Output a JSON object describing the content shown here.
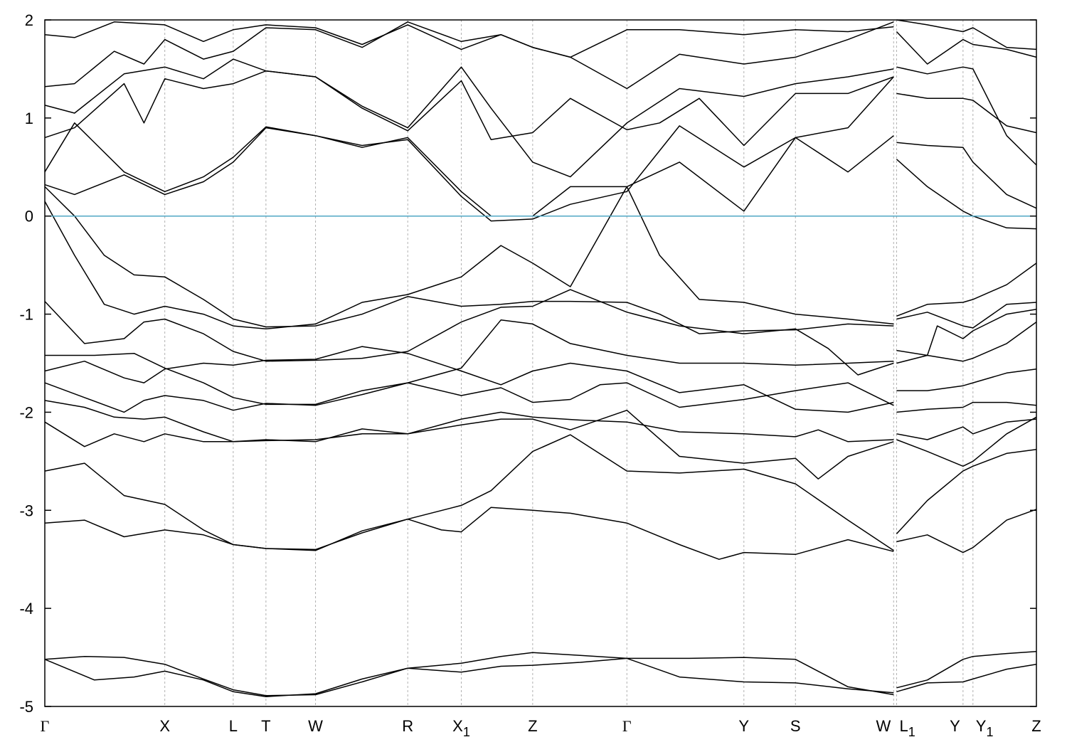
{
  "chart_data": {
    "type": "line",
    "ylim": [
      -5,
      2
    ],
    "xlim": [
      0,
      10
    ],
    "yticks": [
      -5,
      -4,
      -3,
      -2,
      -1,
      0,
      1,
      2
    ],
    "ytick_labels": [
      "-5",
      "-4",
      "-3",
      "-2",
      "-1",
      "0",
      "1",
      "2"
    ],
    "kpoints": [
      {
        "label": "Γ",
        "x": 0.0,
        "greek": true
      },
      {
        "label": "X",
        "x": 1.21
      },
      {
        "label": "L",
        "x": 1.9
      },
      {
        "label": "T",
        "x": 2.23
      },
      {
        "label": "W",
        "x": 2.73
      },
      {
        "label": "R",
        "x": 3.66
      },
      {
        "label": "X",
        "sub": "1",
        "x": 4.2
      },
      {
        "label": "Z",
        "x": 4.92
      },
      {
        "label": "Γ",
        "x": 5.87,
        "greek": true
      },
      {
        "label": "Y",
        "x": 7.05
      },
      {
        "label": "S",
        "x": 7.57
      },
      {
        "label": "W",
        "x": 8.56
      },
      {
        "label": "L",
        "sub": "1",
        "x": 8.59
      },
      {
        "label": "Y",
        "x": 9.26
      },
      {
        "label": "Y",
        "sub": "1",
        "x": 9.36
      },
      {
        "label": "Z",
        "x": 10.0
      }
    ],
    "fermi_level": 0,
    "fermi_color": "#4fa7c4",
    "line_color": "#000000",
    "series": [
      {
        "x": [
          0,
          0.4,
          0.8,
          1.21,
          1.6,
          1.9,
          2.23,
          2.73,
          3.2,
          3.66,
          4.2,
          4.6,
          4.92,
          5.4,
          5.87,
          6.5,
          7.05,
          7.57,
          8.1,
          8.56
        ],
        "y": [
          -4.52,
          -4.49,
          -4.5,
          -4.57,
          -4.72,
          -4.83,
          -4.89,
          -4.88,
          -4.75,
          -4.61,
          -4.56,
          -4.49,
          -4.45,
          -4.48,
          -4.51,
          -4.51,
          -4.5,
          -4.52,
          -4.8,
          -4.88
        ]
      },
      {
        "x": [
          0,
          0.5,
          0.9,
          1.21,
          1.6,
          1.9,
          2.23,
          2.73,
          3.2,
          3.66,
          4.2,
          4.6,
          4.92,
          5.4,
          5.87,
          6.4,
          7.05,
          7.57,
          8.1,
          8.56
        ],
        "y": [
          -4.52,
          -4.73,
          -4.7,
          -4.64,
          -4.73,
          -4.85,
          -4.9,
          -4.87,
          -4.72,
          -4.61,
          -4.65,
          -4.59,
          -4.58,
          -4.55,
          -4.51,
          -4.7,
          -4.75,
          -4.76,
          -4.82,
          -4.86
        ]
      },
      {
        "x": [
          8.59,
          8.9,
          9.26,
          9.36,
          9.7,
          10.0
        ],
        "y": [
          -4.81,
          -4.73,
          -4.52,
          -4.49,
          -4.46,
          -4.44
        ]
      },
      {
        "x": [
          8.59,
          8.9,
          9.26,
          9.36,
          9.7,
          10.0
        ],
        "y": [
          -4.85,
          -4.76,
          -4.75,
          -4.72,
          -4.62,
          -4.57
        ]
      },
      {
        "x": [
          0,
          0.4,
          0.8,
          1.21,
          1.6,
          1.9,
          2.23,
          2.73,
          3.2,
          3.66,
          4.0,
          4.2,
          4.5,
          4.92,
          5.3,
          5.87,
          6.4,
          6.8,
          7.05,
          7.57,
          8.1,
          8.56
        ],
        "y": [
          -3.13,
          -3.1,
          -3.27,
          -3.2,
          -3.25,
          -3.35,
          -3.39,
          -3.41,
          -3.21,
          -3.09,
          -3.2,
          -3.22,
          -2.97,
          -3.0,
          -3.03,
          -3.13,
          -3.35,
          -3.5,
          -3.43,
          -3.45,
          -3.3,
          -3.42
        ]
      },
      {
        "x": [
          0,
          0.4,
          0.8,
          1.21,
          1.6,
          1.9,
          2.23,
          2.73,
          3.2,
          3.66,
          4.2,
          4.5,
          4.92,
          5.3,
          5.87,
          6.4,
          7.05,
          7.57,
          8.1,
          8.56
        ],
        "y": [
          -2.6,
          -2.52,
          -2.85,
          -2.94,
          -3.2,
          -3.35,
          -3.39,
          -3.4,
          -3.23,
          -3.09,
          -2.95,
          -2.8,
          -2.4,
          -2.23,
          -2.6,
          -2.62,
          -2.58,
          -2.73,
          -3.1,
          -3.41
        ]
      },
      {
        "x": [
          8.59,
          8.9,
          9.26,
          9.36,
          9.7,
          10.0
        ],
        "y": [
          -3.32,
          -3.25,
          -3.43,
          -3.38,
          -3.1,
          -2.99
        ]
      },
      {
        "x": [
          8.59,
          8.9,
          9.26,
          9.36,
          9.7,
          10.0
        ],
        "y": [
          -3.24,
          -2.9,
          -2.6,
          -2.55,
          -2.42,
          -2.38
        ]
      },
      {
        "x": [
          0,
          0.4,
          0.7,
          1.0,
          1.21,
          1.6,
          1.9,
          2.23,
          2.73,
          3.2,
          3.66,
          4.2,
          4.6,
          4.92,
          5.4,
          5.87,
          6.4,
          7.05,
          7.57,
          7.8,
          8.1,
          8.56
        ],
        "y": [
          -2.1,
          -2.35,
          -2.22,
          -2.3,
          -2.22,
          -2.3,
          -2.3,
          -2.28,
          -2.3,
          -2.17,
          -2.22,
          -2.07,
          -2.0,
          -2.05,
          -2.08,
          -2.1,
          -2.2,
          -2.22,
          -2.25,
          -2.18,
          -2.3,
          -2.28
        ]
      },
      {
        "x": [
          0,
          0.4,
          0.7,
          1.0,
          1.21,
          1.6,
          1.9,
          2.23,
          2.73,
          3.2,
          3.66,
          4.2,
          4.6,
          4.92,
          5.3,
          5.87,
          6.4,
          7.05,
          7.57,
          7.8,
          8.1,
          8.56
        ],
        "y": [
          -1.88,
          -1.95,
          -2.05,
          -2.07,
          -2.05,
          -2.2,
          -2.3,
          -2.29,
          -2.28,
          -2.22,
          -2.22,
          -2.13,
          -2.07,
          -2.07,
          -2.18,
          -1.98,
          -2.45,
          -2.52,
          -2.47,
          -2.68,
          -2.45,
          -2.3
        ]
      },
      {
        "x": [
          8.59,
          8.9,
          9.26,
          9.36,
          9.7,
          10.0
        ],
        "y": [
          -2.22,
          -2.28,
          -2.15,
          -2.22,
          -2.1,
          -2.07
        ]
      },
      {
        "x": [
          8.59,
          8.9,
          9.26,
          9.36,
          9.7,
          10.0
        ],
        "y": [
          -2.28,
          -2.4,
          -2.55,
          -2.5,
          -2.22,
          -2.05
        ]
      },
      {
        "x": [
          0,
          0.4,
          0.8,
          1.0,
          1.21,
          1.6,
          1.9,
          2.23,
          2.73,
          3.2,
          3.66,
          4.2,
          4.6,
          4.92,
          5.3,
          5.6,
          5.87,
          6.4,
          7.05,
          7.57,
          8.1,
          8.56
        ],
        "y": [
          -1.7,
          -1.85,
          -2.0,
          -1.88,
          -1.83,
          -1.88,
          -1.98,
          -1.91,
          -1.93,
          -1.82,
          -1.7,
          -1.83,
          -1.75,
          -1.9,
          -1.87,
          -1.72,
          -1.7,
          -1.95,
          -1.87,
          -1.78,
          -1.7,
          -1.93
        ]
      },
      {
        "x": [
          0,
          0.4,
          0.8,
          1.0,
          1.21,
          1.6,
          1.9,
          2.23,
          2.73,
          3.2,
          3.66,
          4.2,
          4.6,
          4.92,
          5.3,
          5.87,
          6.4,
          7.05,
          7.57,
          8.1,
          8.56
        ],
        "y": [
          -1.58,
          -1.48,
          -1.65,
          -1.7,
          -1.56,
          -1.5,
          -1.52,
          -1.47,
          -1.46,
          -1.33,
          -1.4,
          -1.58,
          -1.72,
          -1.58,
          -1.5,
          -1.58,
          -1.8,
          -1.72,
          -1.97,
          -2.0,
          -1.9
        ]
      },
      {
        "x": [
          8.59,
          8.9,
          9.26,
          9.36,
          9.7,
          10.0
        ],
        "y": [
          -2.0,
          -1.97,
          -1.95,
          -1.9,
          -1.9,
          -1.93
        ]
      },
      {
        "x": [
          8.59,
          8.9,
          9.26,
          9.36,
          9.7,
          10.0
        ],
        "y": [
          -1.78,
          -1.78,
          -1.73,
          -1.7,
          -1.6,
          -1.56
        ]
      },
      {
        "x": [
          0,
          0.5,
          0.9,
          1.21,
          1.6,
          1.9,
          2.23,
          2.73,
          3.2,
          3.66,
          4.2,
          4.6,
          4.92,
          5.3,
          5.87,
          6.4,
          7.05,
          7.57,
          8.1,
          8.56
        ],
        "y": [
          -1.42,
          -1.42,
          -1.4,
          -1.55,
          -1.7,
          -1.85,
          -1.92,
          -1.92,
          -1.78,
          -1.7,
          -1.55,
          -1.06,
          -1.1,
          -1.3,
          -1.42,
          -1.5,
          -1.5,
          -1.52,
          -1.5,
          -1.48
        ]
      },
      {
        "x": [
          0,
          0.4,
          0.8,
          1.0,
          1.21,
          1.6,
          1.9,
          2.23,
          2.73,
          3.2,
          3.66,
          4.2,
          4.6,
          4.92,
          5.3,
          5.87,
          6.4,
          7.05,
          7.57,
          7.9,
          8.2,
          8.56
        ],
        "y": [
          -0.87,
          -1.3,
          -1.25,
          -1.08,
          -1.05,
          -1.2,
          -1.38,
          -1.48,
          -1.47,
          -1.45,
          -1.38,
          -1.08,
          -0.93,
          -0.92,
          -0.75,
          -0.98,
          -1.12,
          -1.2,
          -1.15,
          -1.35,
          -1.62,
          -1.5
        ]
      },
      {
        "x": [
          8.59,
          8.9,
          9.0,
          9.26,
          9.36,
          9.7,
          10.0
        ],
        "y": [
          -1.37,
          -1.42,
          -1.12,
          -1.25,
          -1.17,
          -1.0,
          -0.95
        ]
      },
      {
        "x": [
          8.59,
          8.9,
          9.26,
          9.36,
          9.7,
          10.0
        ],
        "y": [
          -1.5,
          -1.42,
          -1.48,
          -1.45,
          -1.3,
          -1.08
        ]
      },
      {
        "x": [
          0,
          0.3,
          0.6,
          0.9,
          1.21,
          1.6,
          1.9,
          2.23,
          2.73,
          3.2,
          3.66,
          4.2,
          4.6,
          4.92,
          5.3,
          5.87,
          6.2,
          6.6,
          7.05,
          7.57,
          8.1,
          8.56
        ],
        "y": [
          0.15,
          -0.4,
          -0.9,
          -1.0,
          -0.92,
          -1.0,
          -1.12,
          -1.15,
          -1.1,
          -0.88,
          -0.8,
          -0.62,
          -0.3,
          -0.48,
          -0.72,
          0.3,
          -0.4,
          -0.85,
          -0.88,
          -1.0,
          -1.05,
          -1.1
        ]
      },
      {
        "x": [
          0,
          0.3,
          0.6,
          0.9,
          1.21,
          1.6,
          1.9,
          2.23,
          2.73,
          3.2,
          3.66,
          4.2,
          4.6,
          4.92,
          5.3,
          5.87,
          6.2,
          6.6,
          7.05,
          7.57,
          8.1,
          8.56
        ],
        "y": [
          0.3,
          0.0,
          -0.4,
          -0.6,
          -0.62,
          -0.85,
          -1.05,
          -1.13,
          -1.12,
          -1.0,
          -0.82,
          -0.92,
          -0.9,
          -0.87,
          -0.87,
          -0.88,
          -1.0,
          -1.2,
          -1.17,
          -1.16,
          -1.1,
          -1.12
        ]
      },
      {
        "x": [
          8.59,
          8.9,
          9.26,
          9.36,
          9.7,
          10.0
        ],
        "y": [
          -1.02,
          -0.9,
          -0.88,
          -0.85,
          -0.7,
          -0.48
        ]
      },
      {
        "x": [
          8.59,
          8.9,
          9.26,
          9.36,
          9.7,
          10.0
        ],
        "y": [
          -1.05,
          -0.98,
          -1.12,
          -1.14,
          -0.9,
          -0.88
        ]
      },
      {
        "x": [
          0,
          0.3,
          0.8,
          1.21,
          1.6,
          1.9,
          2.23,
          2.73,
          3.2,
          3.66,
          4.2,
          4.5,
          4.92,
          5.3,
          5.87,
          6.4,
          7.05,
          7.57,
          8.1,
          8.56
        ],
        "y": [
          0.45,
          0.95,
          0.45,
          0.25,
          0.4,
          0.6,
          0.91,
          0.82,
          0.7,
          0.8,
          0.25,
          0.0,
          0.0,
          0.3,
          0.3,
          0.55,
          0.05,
          0.8,
          0.45,
          0.82
        ]
      },
      {
        "x": [
          0,
          0.3,
          0.8,
          1.21,
          1.6,
          1.9,
          2.23,
          2.73,
          3.2,
          3.66,
          4.2,
          4.5,
          4.92,
          5.3,
          5.87,
          6.4,
          7.05,
          7.57,
          8.1,
          8.56
        ],
        "y": [
          0.32,
          0.22,
          0.42,
          0.22,
          0.35,
          0.55,
          0.9,
          0.82,
          0.72,
          0.78,
          0.2,
          -0.05,
          -0.03,
          0.12,
          0.25,
          0.92,
          0.5,
          0.8,
          0.9,
          1.42
        ]
      },
      {
        "x": [
          8.59,
          8.9,
          9.26,
          9.36,
          9.7,
          10.0
        ],
        "y": [
          0.58,
          0.3,
          0.05,
          0.0,
          -0.12,
          -0.13
        ]
      },
      {
        "x": [
          8.59,
          8.9,
          9.26,
          9.36,
          9.7,
          10.0
        ],
        "y": [
          0.75,
          0.72,
          0.7,
          0.55,
          0.22,
          0.08
        ]
      },
      {
        "x": [
          0,
          0.3,
          0.8,
          1.0,
          1.21,
          1.6,
          1.9,
          2.23,
          2.73,
          3.2,
          3.66,
          4.2,
          4.5,
          4.92,
          5.3,
          5.87,
          6.2,
          6.6,
          7.05,
          7.57,
          8.1,
          8.56
        ],
        "y": [
          0.8,
          0.9,
          1.35,
          0.95,
          1.4,
          1.3,
          1.35,
          1.48,
          1.42,
          1.1,
          0.87,
          1.38,
          0.78,
          0.85,
          1.2,
          0.88,
          0.95,
          1.2,
          0.72,
          1.25,
          1.25,
          1.42
        ]
      },
      {
        "x": [
          0,
          0.3,
          0.8,
          1.21,
          1.6,
          1.9,
          2.23,
          2.73,
          3.2,
          3.66,
          4.2,
          4.5,
          4.92,
          5.3,
          5.87,
          6.4,
          7.05,
          7.57,
          8.1,
          8.56
        ],
        "y": [
          1.13,
          1.05,
          1.45,
          1.52,
          1.4,
          1.6,
          1.48,
          1.42,
          1.12,
          0.9,
          1.52,
          1.1,
          0.55,
          0.4,
          0.95,
          1.3,
          1.22,
          1.35,
          1.42,
          1.5
        ]
      },
      {
        "x": [
          8.59,
          8.9,
          9.26,
          9.36,
          9.7,
          10.0
        ],
        "y": [
          1.25,
          1.2,
          1.2,
          1.18,
          0.92,
          0.85
        ]
      },
      {
        "x": [
          8.59,
          8.9,
          9.26,
          9.36,
          9.7,
          10.0
        ],
        "y": [
          1.52,
          1.45,
          1.52,
          1.5,
          0.82,
          0.52
        ]
      },
      {
        "x": [
          0,
          0.3,
          0.7,
          1.0,
          1.21,
          1.6,
          1.9,
          2.23,
          2.73,
          3.2,
          3.66,
          4.2,
          4.6,
          4.92,
          5.3,
          5.87,
          6.4,
          7.05,
          7.57,
          8.1,
          8.56
        ],
        "y": [
          1.32,
          1.35,
          1.68,
          1.55,
          1.8,
          1.6,
          1.68,
          1.92,
          1.9,
          1.72,
          1.98,
          1.78,
          1.85,
          1.72,
          1.62,
          1.3,
          1.65,
          1.55,
          1.62,
          1.8,
          1.98
        ]
      },
      {
        "x": [
          0,
          0.3,
          0.7,
          1.21,
          1.6,
          1.9,
          2.23,
          2.73,
          3.2,
          3.66,
          4.2,
          4.6,
          4.92,
          5.3,
          5.87,
          6.4,
          7.05,
          7.57,
          8.1,
          8.56
        ],
        "y": [
          1.85,
          1.82,
          1.98,
          1.95,
          1.78,
          1.9,
          1.95,
          1.92,
          1.75,
          1.95,
          1.7,
          1.85,
          1.72,
          1.62,
          1.9,
          1.9,
          1.85,
          1.9,
          1.88,
          1.93
        ]
      },
      {
        "x": [
          8.59,
          8.9,
          9.26,
          9.36,
          9.7,
          10.0
        ],
        "y": [
          1.88,
          1.55,
          1.8,
          1.75,
          1.7,
          1.62
        ]
      },
      {
        "x": [
          8.59,
          8.9,
          9.26,
          9.36,
          9.7,
          10.0
        ],
        "y": [
          2.0,
          1.95,
          1.88,
          1.92,
          1.72,
          1.7
        ]
      }
    ]
  }
}
